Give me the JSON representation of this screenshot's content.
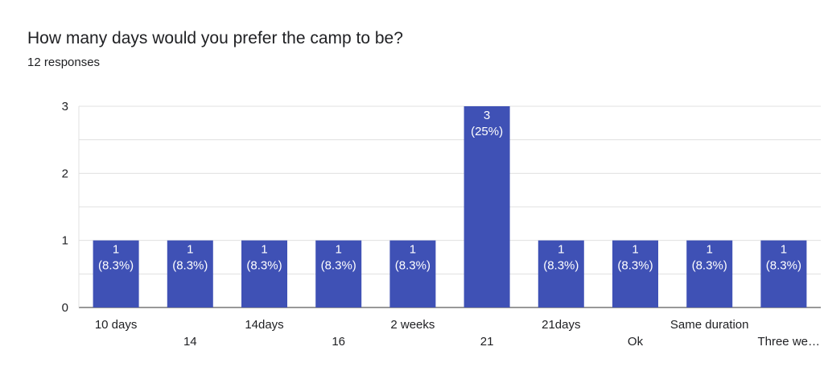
{
  "title": "How many days would you prefer the camp to be?",
  "responses": "12 responses",
  "chart_data": {
    "type": "bar",
    "categories": [
      "10 days",
      "14",
      "14days",
      "16",
      "2 weeks",
      "21",
      "21days",
      "Ok",
      "Same duration",
      "Three we…"
    ],
    "values": [
      1,
      1,
      1,
      1,
      1,
      3,
      1,
      1,
      1,
      1
    ],
    "data_labels": [
      "1",
      "1",
      "1",
      "1",
      "1",
      "3",
      "1",
      "1",
      "1",
      "1"
    ],
    "percent_labels": [
      "(8.3%)",
      "(8.3%)",
      "(8.3%)",
      "(8.3%)",
      "(8.3%)",
      "(25%)",
      "(8.3%)",
      "(8.3%)",
      "(8.3%)",
      "(8.3%)"
    ],
    "yticks": [
      "0",
      "1",
      "2",
      "3"
    ],
    "ylim": [
      0,
      3
    ],
    "grid": true,
    "bar_color": "#3f51b5",
    "grid_color": "#e0e0e0"
  }
}
